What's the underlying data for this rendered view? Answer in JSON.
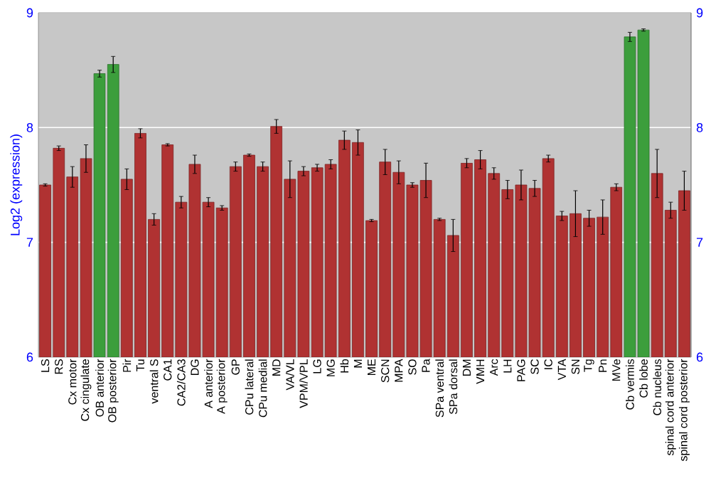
{
  "chart_data": {
    "type": "bar",
    "ylabel": "Log2 (expression)",
    "categories": [
      "LS",
      "RS",
      "Cx motor",
      "Cx cingulate",
      "OB anterior",
      "OB posterior",
      "Pir",
      "Tu",
      "ventral S",
      "CA1",
      "CA2/CA3",
      "DG",
      "A anterior",
      "A posterior",
      "GP",
      "CPu lateral",
      "CPu medial",
      "MD",
      "VA/VL",
      "VPM/VPL",
      "LG",
      "MG",
      "Hb",
      "M",
      "ME",
      "SCN",
      "MPA",
      "SO",
      "Pa",
      "SPa ventral",
      "SPa dorsal",
      "DM",
      "VMH",
      "Arc",
      "LH",
      "PAG",
      "SC",
      "IC",
      "VTA",
      "SN",
      "Tg",
      "Pn",
      "MVe",
      "Cb vermis",
      "Cb lobe",
      "Cb nucleus",
      "spinal cord anterior",
      "spinal cord posterior"
    ],
    "values": [
      7.5,
      7.82,
      7.57,
      7.73,
      8.47,
      8.55,
      7.55,
      7.95,
      7.2,
      7.85,
      7.35,
      7.68,
      7.35,
      7.3,
      7.66,
      7.76,
      7.66,
      8.01,
      7.55,
      7.62,
      7.65,
      7.68,
      7.89,
      7.87,
      7.19,
      7.7,
      7.61,
      7.5,
      7.54,
      7.2,
      7.06,
      7.69,
      7.72,
      7.6,
      7.46,
      7.5,
      7.47,
      7.73,
      7.23,
      7.25,
      7.21,
      7.22,
      7.48,
      8.79,
      8.85,
      7.6,
      7.28,
      7.45
    ],
    "errors": [
      0.01,
      0.02,
      0.09,
      0.12,
      0.03,
      0.07,
      0.09,
      0.04,
      0.05,
      0.01,
      0.05,
      0.08,
      0.04,
      0.02,
      0.04,
      0.01,
      0.04,
      0.06,
      0.16,
      0.04,
      0.03,
      0.04,
      0.08,
      0.11,
      0.01,
      0.11,
      0.1,
      0.02,
      0.15,
      0.01,
      0.14,
      0.04,
      0.08,
      0.05,
      0.08,
      0.13,
      0.07,
      0.03,
      0.04,
      0.2,
      0.07,
      0.15,
      0.03,
      0.04,
      0.01,
      0.21,
      0.07,
      0.17
    ],
    "colors": [
      "#b03232",
      "#b03232",
      "#b03232",
      "#b03232",
      "#3c9e3c",
      "#3c9e3c",
      "#b03232",
      "#b03232",
      "#b03232",
      "#b03232",
      "#b03232",
      "#b03232",
      "#b03232",
      "#b03232",
      "#b03232",
      "#b03232",
      "#b03232",
      "#b03232",
      "#b03232",
      "#b03232",
      "#b03232",
      "#b03232",
      "#b03232",
      "#b03232",
      "#b03232",
      "#b03232",
      "#b03232",
      "#b03232",
      "#b03232",
      "#b03232",
      "#b03232",
      "#b03232",
      "#b03232",
      "#b03232",
      "#b03232",
      "#b03232",
      "#b03232",
      "#b03232",
      "#b03232",
      "#b03232",
      "#b03232",
      "#b03232",
      "#b03232",
      "#3c9e3c",
      "#3c9e3c",
      "#b03232",
      "#b03232",
      "#b03232"
    ],
    "ylim": [
      6,
      9
    ],
    "yticks": [
      6,
      7,
      8,
      9
    ],
    "y2lim": [
      6,
      9
    ],
    "y2ticks": [
      6,
      7,
      8,
      9
    ],
    "grid": "y"
  }
}
